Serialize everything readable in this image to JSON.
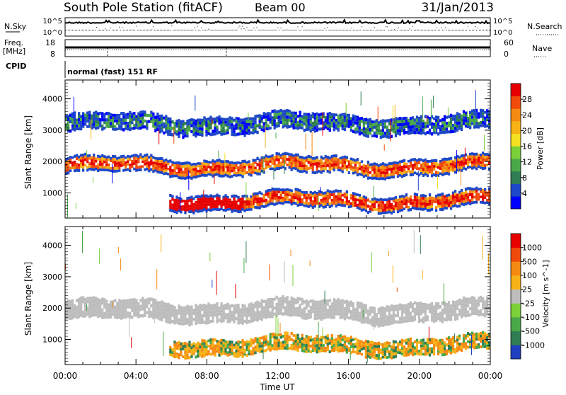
{
  "header": {
    "station": "South Pole Station (fitACF)",
    "beam": "Beam 00",
    "date": "31/Jan/2013"
  },
  "strips": {
    "nsky_label": "N.Sky",
    "nsearch_label": "N.Search",
    "nsky_ticks": [
      "10^5",
      "10^0"
    ],
    "nsearch_ticks": [
      "10^5",
      "10^0"
    ],
    "freq_label": "Freq.",
    "freq_unit": "[MHz]",
    "freq_ticks": [
      "18",
      "8"
    ],
    "nave_label": "Nave",
    "nave_ticks": [
      "60",
      "0"
    ],
    "cpid_label": "CPID",
    "cpid_value": "normal (fast) 151 RF"
  },
  "colors": {
    "scatter_blue": "#1f3fbf",
    "ground_gray": "#bdbdbd"
  },
  "chart_data": [
    {
      "type": "heatmap",
      "panel": "power",
      "xlabel": "",
      "ylabel": "Slant Range [km]",
      "ylim": [
        200,
        4600
      ],
      "yticks": [
        "1000",
        "2000",
        "3000",
        "4000"
      ],
      "xlim": [
        0,
        24
      ],
      "colorbar": {
        "label": "Power [dB]",
        "ticks": [
          "28",
          "24",
          "20",
          "16",
          "12",
          "8",
          "4"
        ],
        "colors": [
          "#0000ff",
          "#1e48c8",
          "#2f7d52",
          "#4aa84a",
          "#7cd03a",
          "#f5e023",
          "#f6b216",
          "#f58a12",
          "#f04a0c",
          "#e60000"
        ]
      },
      "bands": [
        {
          "name": "f-region",
          "t0": 0.0,
          "t1": 24.0,
          "r_center": 1850,
          "r_width": 450,
          "level": 0.55
        },
        {
          "name": "near-range",
          "t0": 5.8,
          "t1": 24.0,
          "r_center": 750,
          "r_width": 450,
          "level": 0.6
        },
        {
          "name": "high-range",
          "t0": 0.0,
          "t1": 24.0,
          "r_center": 3200,
          "r_width": 500,
          "level": 0.05
        }
      ]
    },
    {
      "type": "heatmap",
      "panel": "velocity",
      "xlabel": "Time UT",
      "ylabel": "Slant Range [km]",
      "ylim": [
        200,
        4600
      ],
      "yticks": [
        "1000",
        "2000",
        "3000",
        "4000"
      ],
      "xlim": [
        0,
        24
      ],
      "xticks": [
        "00:00",
        "04:00",
        "08:00",
        "12:00",
        "16:00",
        "20:00",
        "00:00"
      ],
      "colorbar": {
        "label": "Velocity [m s^-1]",
        "ticks": [
          "1000",
          "500",
          "100",
          "25",
          "-25",
          "-100",
          "-500",
          "-1000"
        ],
        "colors": [
          "#1f3fbf",
          "#2f7d52",
          "#4aa84a",
          "#7cd03a",
          "#bdbdbd",
          "#f6b216",
          "#f58a12",
          "#f04a0c",
          "#e60000"
        ]
      },
      "bands": [
        {
          "name": "ground-scatter",
          "t0": 0.0,
          "t1": 24.0,
          "r_center": 1900,
          "r_width": 550,
          "level": 0.0
        },
        {
          "name": "near-range",
          "t0": 5.8,
          "t1": 24.0,
          "r_center": 800,
          "r_width": 450,
          "level": -0.3
        }
      ]
    }
  ]
}
